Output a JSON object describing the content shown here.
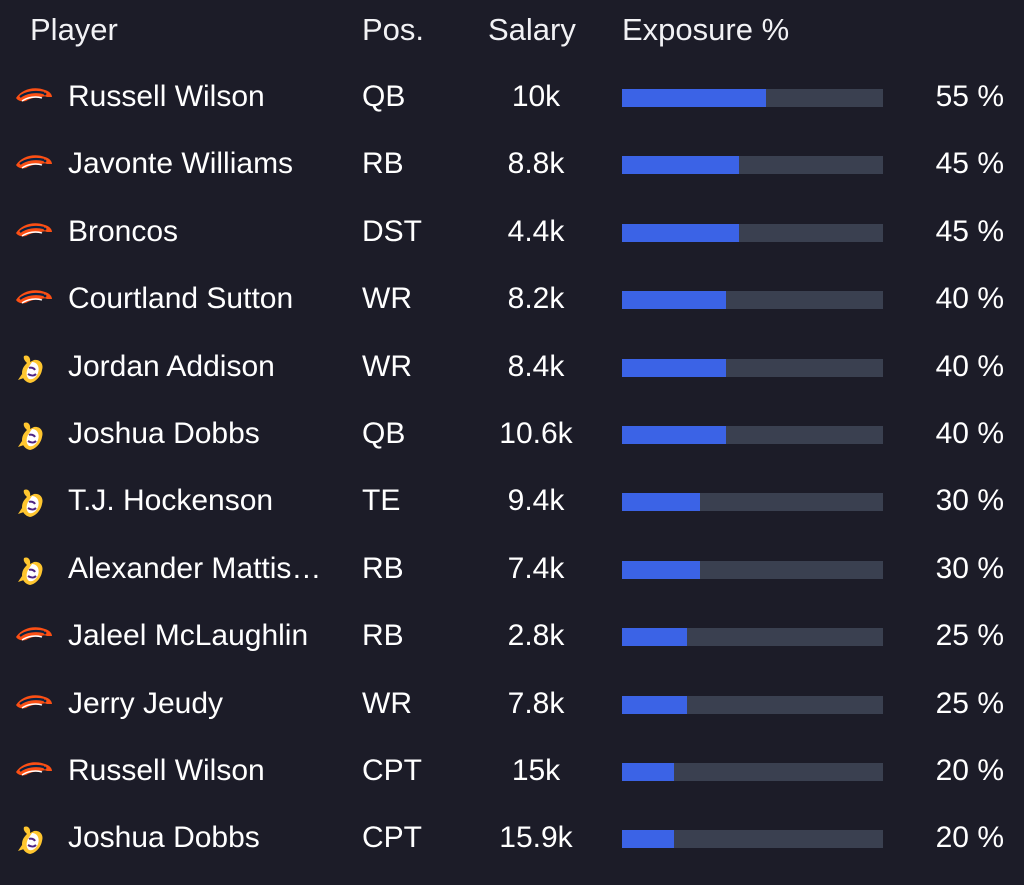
{
  "header": {
    "player": "Player",
    "pos": "Pos.",
    "salary": "Salary",
    "exposure": "Exposure %"
  },
  "colors": {
    "background": "#1c1c28",
    "bar_track": "#3a4050",
    "bar_fill": "#3b63e6",
    "broncos_orange": "#fb4f14",
    "broncos_navy": "#0a2343",
    "vikings_purple": "#4f2683",
    "vikings_gold": "#ffc62f"
  },
  "rows": [
    {
      "team_icon": "broncos-logo-icon",
      "name": "Russell Wilson",
      "pos": "QB",
      "salary": "10k",
      "exposure": 55,
      "pct": "55 %"
    },
    {
      "team_icon": "broncos-logo-icon",
      "name": "Javonte Williams",
      "pos": "RB",
      "salary": "8.8k",
      "exposure": 45,
      "pct": "45 %"
    },
    {
      "team_icon": "broncos-logo-icon",
      "name": "Broncos",
      "pos": "DST",
      "salary": "4.4k",
      "exposure": 45,
      "pct": "45 %"
    },
    {
      "team_icon": "broncos-logo-icon",
      "name": "Courtland Sutton",
      "pos": "WR",
      "salary": "8.2k",
      "exposure": 40,
      "pct": "40 %"
    },
    {
      "team_icon": "vikings-logo-icon",
      "name": "Jordan Addison",
      "pos": "WR",
      "salary": "8.4k",
      "exposure": 40,
      "pct": "40 %"
    },
    {
      "team_icon": "vikings-logo-icon",
      "name": "Joshua Dobbs",
      "pos": "QB",
      "salary": "10.6k",
      "exposure": 40,
      "pct": "40 %"
    },
    {
      "team_icon": "vikings-logo-icon",
      "name": "T.J. Hockenson",
      "pos": "TE",
      "salary": "9.4k",
      "exposure": 30,
      "pct": "30 %"
    },
    {
      "team_icon": "vikings-logo-icon",
      "name": "Alexander Mattis…",
      "pos": "RB",
      "salary": "7.4k",
      "exposure": 30,
      "pct": "30 %"
    },
    {
      "team_icon": "broncos-logo-icon",
      "name": "Jaleel McLaughlin",
      "pos": "RB",
      "salary": "2.8k",
      "exposure": 25,
      "pct": "25 %"
    },
    {
      "team_icon": "broncos-logo-icon",
      "name": "Jerry Jeudy",
      "pos": "WR",
      "salary": "7.8k",
      "exposure": 25,
      "pct": "25 %"
    },
    {
      "team_icon": "broncos-logo-icon",
      "name": "Russell Wilson",
      "pos": "CPT",
      "salary": "15k",
      "exposure": 20,
      "pct": "20 %"
    },
    {
      "team_icon": "vikings-logo-icon",
      "name": "Joshua Dobbs",
      "pos": "CPT",
      "salary": "15.9k",
      "exposure": 20,
      "pct": "20 %"
    }
  ]
}
